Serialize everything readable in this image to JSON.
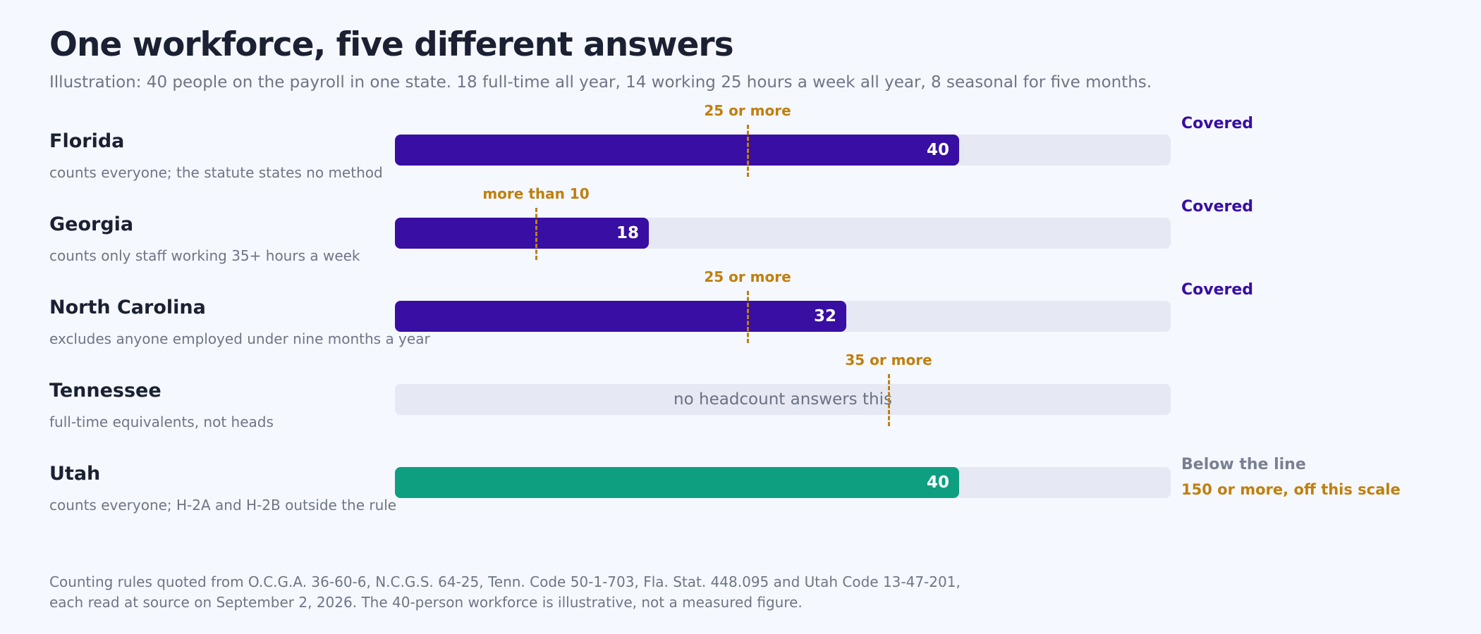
{
  "header": {
    "title": "One workforce, five different answers",
    "subtitle": "Illustration: 40 people on the payroll in one state. 18 full-time all year, 14 working 25 hours a week all year, 8 seasonal for five months."
  },
  "colors": {
    "covered": "#380ea3",
    "utah": "#0e9f81",
    "threshold": "#c07f0e",
    "below": "#7a8092",
    "track": "#e6e9f3"
  },
  "chart_data": {
    "type": "bar",
    "orientation": "horizontal",
    "xlim": [
      0,
      55
    ],
    "rows": [
      {
        "state": "Florida",
        "note": "counts everyone; the statute states no method",
        "value": 40,
        "value_label": "40",
        "threshold": 25,
        "threshold_label": "25 or more",
        "verdict": "Covered",
        "verdict_note": "",
        "bar_color": "covered",
        "verdict_color": "covered"
      },
      {
        "state": "Georgia",
        "note": "counts only staff working 35+ hours a week",
        "value": 18,
        "value_label": "18",
        "threshold": 10,
        "threshold_label": "more than 10",
        "verdict": "Covered",
        "verdict_note": "",
        "bar_color": "covered",
        "verdict_color": "covered"
      },
      {
        "state": "North Carolina",
        "note": "excludes anyone employed under nine months a year",
        "value": 32,
        "value_label": "32",
        "threshold": 25,
        "threshold_label": "25 or more",
        "verdict": "Covered",
        "verdict_note": "",
        "bar_color": "covered",
        "verdict_color": "covered"
      },
      {
        "state": "Tennessee",
        "note": "full-time equivalents, not heads",
        "value": null,
        "value_label": "",
        "track_text": "no headcount answers this",
        "threshold": 35,
        "threshold_label": "35 or more",
        "verdict": "",
        "verdict_note": "",
        "bar_color": "covered",
        "verdict_color": "covered"
      },
      {
        "state": "Utah",
        "note": "counts everyone; H-2A and H-2B outside the rule",
        "value": 40,
        "value_label": "40",
        "threshold": null,
        "threshold_label": "",
        "verdict": "Below the line",
        "verdict_note": "150 or more, off this scale",
        "bar_color": "utah",
        "verdict_color": "below"
      }
    ]
  },
  "footer": {
    "line1": "Counting rules quoted from O.C.G.A. 36-60-6, N.C.G.S. 64-25, Tenn. Code 50-1-703, Fla. Stat. 448.095 and Utah Code 13-47-201,",
    "line2": "each read at source on September 2, 2026. The 40-person workforce is illustrative, not a measured figure."
  }
}
